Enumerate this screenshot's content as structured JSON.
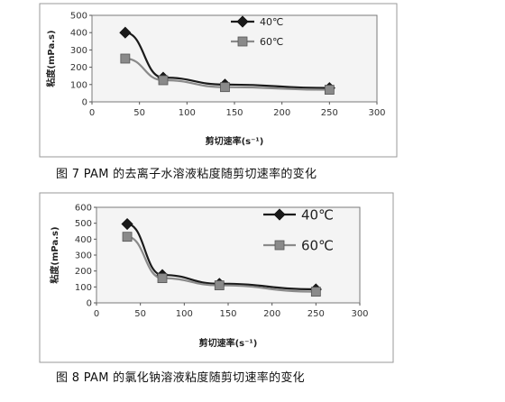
{
  "chart_data": [
    {
      "type": "line",
      "caption": "图 7  PAM 的去离子水溶液粘度随剪切速率的变化",
      "xlabel": "剪切速率(s⁻¹)",
      "ylabel": "粘度(mPa.s)",
      "xlim": [
        0,
        300
      ],
      "ylim": [
        0,
        500
      ],
      "x_ticks": [
        "0",
        "50",
        "100",
        "150",
        "200",
        "250",
        "300"
      ],
      "y_ticks": [
        "0",
        "100",
        "200",
        "300",
        "400",
        "500"
      ],
      "grid": false,
      "legend_position": "top-right",
      "series": [
        {
          "name": "40℃",
          "marker": "diamond",
          "color": "#1a1a1a",
          "x": [
            35,
            75,
            140,
            250
          ],
          "y": [
            400,
            140,
            100,
            80
          ]
        },
        {
          "name": "60℃",
          "marker": "square",
          "color": "#8a8a8a",
          "x": [
            35,
            75,
            140,
            250
          ],
          "y": [
            250,
            125,
            85,
            70
          ]
        }
      ]
    },
    {
      "type": "line",
      "caption": "图 8  PAM 的氯化钠溶液粘度随剪切速率的变化",
      "xlabel": "剪切速率(s⁻¹)",
      "ylabel": "粘度(mPa.s)",
      "xlim": [
        0,
        300
      ],
      "ylim": [
        0,
        600
      ],
      "x_ticks": [
        "0",
        "50",
        "100",
        "150",
        "200",
        "250",
        "300"
      ],
      "y_ticks": [
        "0",
        "100",
        "200",
        "300",
        "400",
        "500",
        "600"
      ],
      "grid": false,
      "legend_position": "top-right",
      "series": [
        {
          "name": "40℃",
          "marker": "diamond",
          "color": "#1a1a1a",
          "x": [
            35,
            75,
            140,
            250
          ],
          "y": [
            495,
            175,
            120,
            85
          ]
        },
        {
          "name": "60℃",
          "marker": "square",
          "color": "#8a8a8a",
          "x": [
            35,
            75,
            140,
            250
          ],
          "y": [
            415,
            155,
            110,
            70
          ]
        }
      ]
    }
  ]
}
